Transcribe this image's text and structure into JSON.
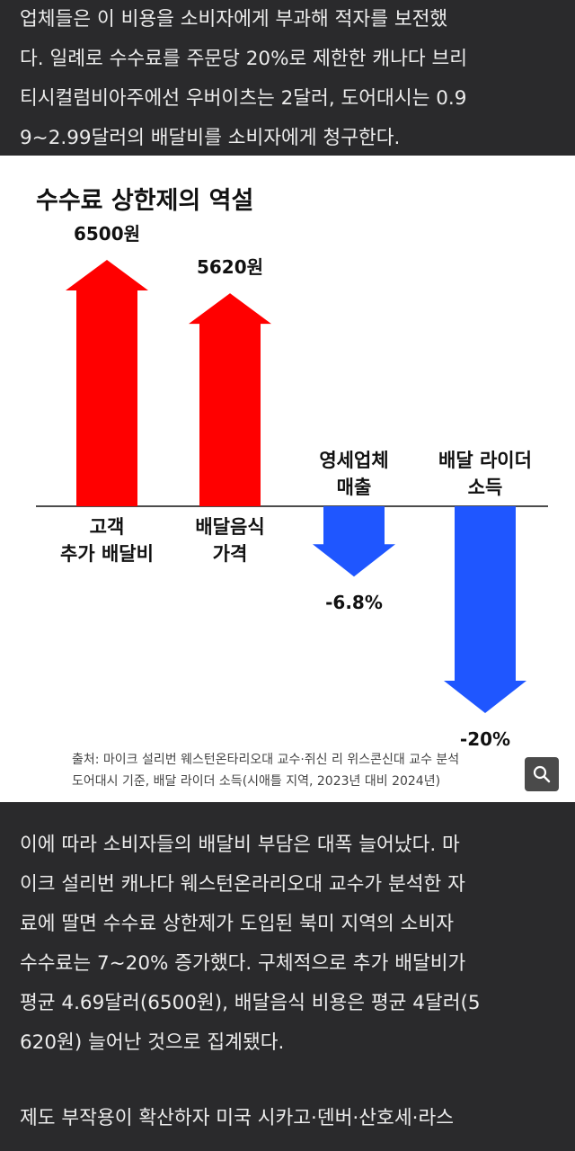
{
  "article": {
    "top_lines": [
      "업체들은 이 비용을 소비자에게 부과해 적자를 보전했",
      "다. 일례로 수수료를 주문당 20%로 제한한 캐나다 브리",
      "티시컬럼비아주에선 우버이츠는 2달러, 도어대시는 0.9",
      "9~2.99달러의 배달비를 소비자에게 청구한다."
    ],
    "bottom_lines": [
      "이에 따라 소비자들의 배달비 부담은 대폭 늘어났다. 마",
      "이크 설리번 캐나다 웨스턴온라리오대 교수가 분석한 자",
      "료에 딸면 수수료 상한제가 도입된 북미 지역의 소비자",
      "수수료는 7~20% 증가했다. 구체적으로 추가 배달비가",
      "평균 4.69달러(6500원), 배달음식 비용은 평균 4달러(5",
      "620원) 늘어난 것으로 집계됐다."
    ],
    "last_line": "제도 부작용이 확산하자 미국 시카고·덴버·산호세·라스"
  },
  "figure": {
    "source_line1": "출처: 마이크 설리번 웨스턴온타리오대 교수·쥐신 리 위스콘신대 교수 분석",
    "source_line2": "도어대시 기준, 배달 라이더 소득(시애틀 지역, 2023년 대비 2024년)",
    "zoom_icon": "magnifier-icon"
  },
  "chart_data": {
    "type": "bar",
    "title": "수수료 상한제의 역설",
    "categories": [
      [
        "고객",
        "추가 배달비"
      ],
      [
        "배달음식",
        "가격"
      ],
      [
        "영세업체",
        "매출"
      ],
      [
        "배달 라이더",
        "소득"
      ]
    ],
    "series": [
      {
        "values": [
          6500,
          5620,
          -6.8,
          -20
        ],
        "value_labels": [
          "6500원",
          "5620원",
          "-6.8%",
          "-20%"
        ],
        "units": [
          "원",
          "원",
          "%",
          "%"
        ]
      }
    ],
    "colors": {
      "increase": "#ff0000",
      "decrease": "#1f56ff"
    }
  }
}
